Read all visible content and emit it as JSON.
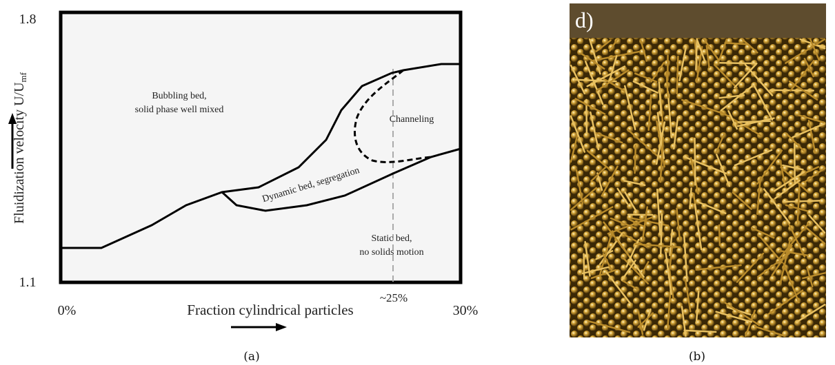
{
  "panel_a": {
    "y_top_label": "1.8",
    "y_bottom_label": "1.1",
    "y_title": "Fluidization velocity U/U",
    "y_title_subscript": "mf",
    "x_left_label": "0%",
    "x_right_label": "30%",
    "x_title": "Fraction cylindrical particles",
    "x_marker_label": "~25%",
    "regions": {
      "bubbling": [
        "Bubbling bed,",
        "solid phase well mixed"
      ],
      "channeling": "Channeling",
      "dynamic": "Dynamic bed, segregation",
      "static": [
        "Static bed,",
        "no solids motion"
      ]
    },
    "caption": "(a)"
  },
  "panel_b": {
    "label": "d)",
    "caption": "(b)"
  }
}
